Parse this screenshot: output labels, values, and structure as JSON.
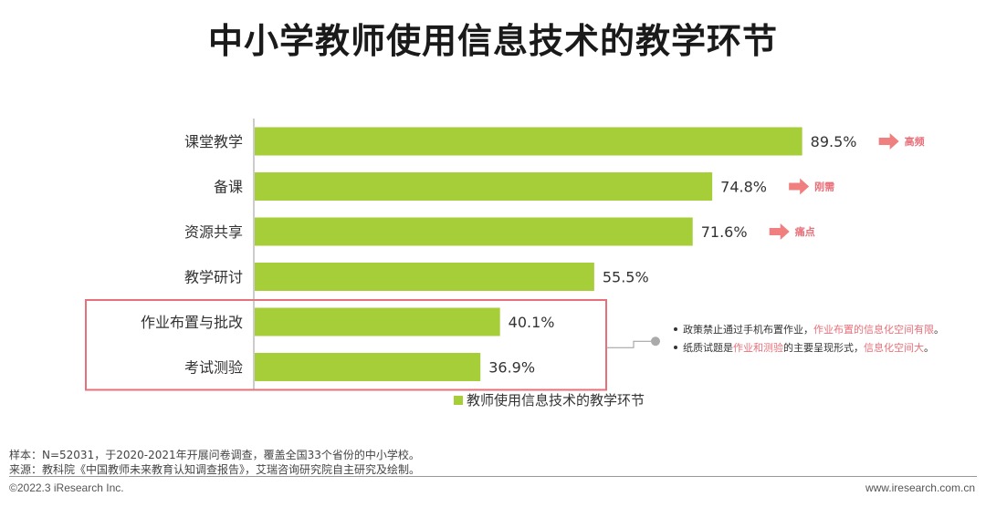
{
  "title": "中小学教师使用信息技术的教学环节",
  "chart_data": {
    "type": "bar",
    "orientation": "horizontal",
    "categories": [
      "课堂教学",
      "备课",
      "资源共享",
      "教学研讨",
      "作业布置与批改",
      "考试测验"
    ],
    "series": [
      {
        "name": "教师使用信息技术的教学环节",
        "values": [
          89.5,
          74.8,
          71.6,
          55.5,
          40.1,
          36.9
        ]
      }
    ],
    "value_labels": [
      "89.5%",
      "74.8%",
      "71.6%",
      "55.5%",
      "40.1%",
      "36.9%"
    ],
    "xlim": [
      0,
      100
    ],
    "legend_position": "bottom",
    "bar_color": "#a6ce39",
    "annotation_color": "#f08080",
    "highlight_color": "#e8707a",
    "tags": [
      {
        "category_index": 0,
        "text": "高频"
      },
      {
        "category_index": 1,
        "text": "刚需"
      },
      {
        "category_index": 2,
        "text": "痛点"
      }
    ],
    "highlight_categories": [
      4,
      5
    ],
    "notes": [
      {
        "plain": "政策禁止通过手机布置作业，",
        "highlight": "作业布置的信息化空间有限",
        "after": "。"
      },
      {
        "plain": "纸质试题是",
        "highlight": "作业和测验",
        "after": "的主要呈现形式，",
        "highlight2": "信息化空间大",
        "after2": "。"
      }
    ]
  },
  "footer": {
    "sample": "样本：N=52031，于2020-2021年开展问卷调查，覆盖全国33个省份的中小学校。",
    "source": "来源：教科院《中国教师未来教育认知调查报告》，艾瑞咨询研究院自主研究及绘制。",
    "copyright": "©2022.3 iResearch Inc.",
    "website": "www.iresearch.com.cn"
  }
}
